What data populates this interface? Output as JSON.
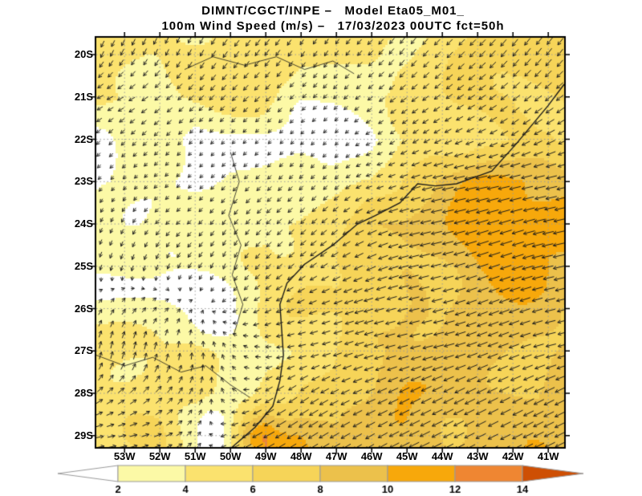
{
  "chart_data": {
    "type": "heatmap",
    "overlays": [
      "wind-vectors",
      "coastline",
      "lat-lon-dotted-grid"
    ],
    "title": "DIMNT/CGCT/INPE –   Model Eta05_M01_",
    "subtitle": "100m Wind Speed (m/s) –   17/03/2023 00UTC fct=50h",
    "y_tick_labels": [
      "20S",
      "21S",
      "22S",
      "23S",
      "24S",
      "25S",
      "26S",
      "27S",
      "28S",
      "29S"
    ],
    "x_tick_labels": [
      "53W",
      "52W",
      "51W",
      "50W",
      "49W",
      "48W",
      "47W",
      "46W",
      "45W",
      "44W",
      "43W",
      "42W",
      "41W"
    ],
    "lon_range": [
      -53.8,
      -40.55
    ],
    "lat_range": [
      -19.6,
      -29.27
    ],
    "colorbar": {
      "levels": [
        2,
        4,
        6,
        8,
        10,
        12,
        14
      ],
      "labels": [
        "2",
        "4",
        "6",
        "8",
        "10",
        "12",
        "14"
      ],
      "colors": [
        "#FCF9A6",
        "#FBE26E",
        "#F6D458",
        "#ECC14B",
        "#F7A80B",
        "#EF8632"
      ],
      "below_color": "#FFFFFF",
      "above_color": "#CE4F04",
      "outline_color": "#999999"
    },
    "wind_grid": {
      "lons": [
        -53,
        -52,
        -51,
        -50,
        -49,
        -48,
        -47,
        -46,
        -45,
        -44,
        -43,
        -42,
        -41
      ],
      "lats": [
        -20,
        -21,
        -22,
        -23,
        -24,
        -25,
        -26,
        -27,
        -28,
        -29
      ],
      "u": [
        [
          -2,
          -2,
          -2,
          -3,
          -3,
          -2,
          -2,
          -3,
          -3,
          -4,
          -4,
          -4,
          -4
        ],
        [
          -4,
          -4,
          -3,
          -3,
          -3,
          -2,
          -2,
          -3,
          -4,
          -4,
          -5,
          -5,
          -5
        ],
        [
          -2,
          -2,
          -1,
          -1,
          -1,
          -1,
          -1,
          -2,
          -3,
          -4,
          -5,
          -5,
          -6
        ],
        [
          -1,
          -1,
          -1,
          -2,
          -2,
          -2,
          -2,
          -3,
          -6,
          -9,
          -10,
          -9,
          -9
        ],
        [
          -1,
          -2,
          -2,
          -2,
          -3,
          -3,
          -4,
          -7,
          -8,
          -9,
          -10,
          -10,
          -9
        ],
        [
          -1,
          -1,
          -2,
          -1,
          -3,
          -4,
          -5,
          -7,
          -8,
          -8,
          -9,
          -9,
          -9
        ],
        [
          2,
          2,
          1,
          -2,
          -4,
          -5,
          -6,
          -7,
          -8,
          -8,
          -8,
          -8,
          -8
        ],
        [
          1,
          1,
          0,
          -1,
          -3,
          -5,
          -6,
          -7,
          -8,
          -8,
          -8,
          -8,
          -8
        ],
        [
          4,
          4,
          2,
          -2,
          -5,
          -6,
          -6,
          -7,
          -8,
          -8,
          -8,
          -8,
          -8
        ],
        [
          5,
          5,
          2,
          -4,
          -9,
          -8,
          -7,
          -7,
          -8,
          -8,
          -8,
          -8,
          -8
        ]
      ],
      "v": [
        [
          -4,
          -4,
          -4,
          -4,
          -4,
          -3,
          -3,
          -3,
          -4,
          -4,
          -4,
          -5,
          -5
        ],
        [
          -2,
          -3,
          -3,
          -3,
          -3,
          -2,
          -2,
          -2,
          -3,
          -3,
          -3,
          -4,
          -4
        ],
        [
          -2,
          -2,
          -1,
          -1,
          -1,
          -1,
          -1,
          -1,
          -2,
          -2,
          -2,
          -3,
          -3
        ],
        [
          -1,
          -1,
          -1,
          -2,
          -2,
          -2,
          -2,
          -1,
          -2,
          -2,
          -2,
          -2,
          -2
        ],
        [
          -2,
          -2,
          -2,
          -3,
          -3,
          -3,
          -3,
          -3,
          -2,
          -2,
          -3,
          -3,
          -2
        ],
        [
          -3,
          -3,
          -3,
          -3,
          -3,
          -3,
          -3,
          -3,
          -2,
          -2,
          -3,
          -3,
          -2
        ],
        [
          3,
          2,
          1,
          -1,
          -2,
          -2,
          -2,
          -2,
          -2,
          -2,
          -3,
          -3,
          -2
        ],
        [
          5,
          5,
          4,
          2,
          0,
          -1,
          -2,
          -2,
          -2,
          -2,
          -3,
          -3,
          -2
        ],
        [
          3,
          4,
          4,
          2,
          -3,
          -4,
          -3,
          -3,
          -4,
          -4,
          -4,
          -4,
          -4
        ],
        [
          1,
          2,
          2,
          -2,
          -5,
          -5,
          -4,
          -4,
          -4,
          -4,
          -4,
          -4,
          -4
        ]
      ]
    },
    "hotspots": [
      {
        "lon": -49.35,
        "lat": -29.05,
        "amp": 3.4,
        "r": 0.55
      },
      {
        "lon": -42.3,
        "lat": -23.9,
        "amp": 1.8,
        "r": 1.1
      },
      {
        "lon": -41.3,
        "lat": -24.9,
        "amp": 1.2,
        "r": 0.9
      },
      {
        "lon": -45.3,
        "lat": -28.3,
        "amp": 1.3,
        "r": 0.8
      }
    ],
    "coastline": [
      [
        -40.55,
        -20.7
      ],
      [
        -41.0,
        -21.2
      ],
      [
        -41.9,
        -22.1
      ],
      [
        -42.6,
        -22.75
      ],
      [
        -43.1,
        -22.9
      ],
      [
        -43.6,
        -23.05
      ],
      [
        -44.2,
        -23.1
      ],
      [
        -44.7,
        -23.05
      ],
      [
        -45.2,
        -23.5
      ],
      [
        -45.9,
        -23.8
      ],
      [
        -46.4,
        -24.0
      ],
      [
        -47.1,
        -24.5
      ],
      [
        -47.9,
        -24.95
      ],
      [
        -48.4,
        -25.4
      ],
      [
        -48.6,
        -25.9
      ],
      [
        -48.55,
        -26.5
      ],
      [
        -48.5,
        -27.1
      ],
      [
        -48.6,
        -27.7
      ],
      [
        -48.8,
        -28.3
      ],
      [
        -49.3,
        -28.8
      ],
      [
        -49.95,
        -29.27
      ],
      [
        -50.2,
        -29.4
      ]
    ],
    "rivers": [
      [
        [
          -51.3,
          -20.35
        ],
        [
          -50.5,
          -20.05
        ],
        [
          -49.6,
          -20.25
        ],
        [
          -48.7,
          -20.05
        ],
        [
          -47.9,
          -20.35
        ],
        [
          -47.1,
          -20.15
        ],
        [
          -46.5,
          -20.45
        ]
      ],
      [
        [
          -50.0,
          -22.3
        ],
        [
          -49.75,
          -23.0
        ],
        [
          -50.05,
          -23.8
        ],
        [
          -49.7,
          -24.5
        ],
        [
          -49.95,
          -25.2
        ],
        [
          -49.65,
          -25.9
        ],
        [
          -49.9,
          -26.6
        ]
      ],
      [
        [
          -53.8,
          -27.1
        ],
        [
          -53.0,
          -27.35
        ],
        [
          -52.2,
          -27.15
        ],
        [
          -51.4,
          -27.5
        ],
        [
          -50.7,
          -27.35
        ],
        [
          -50.0,
          -27.8
        ],
        [
          -49.45,
          -28.1
        ]
      ]
    ]
  }
}
